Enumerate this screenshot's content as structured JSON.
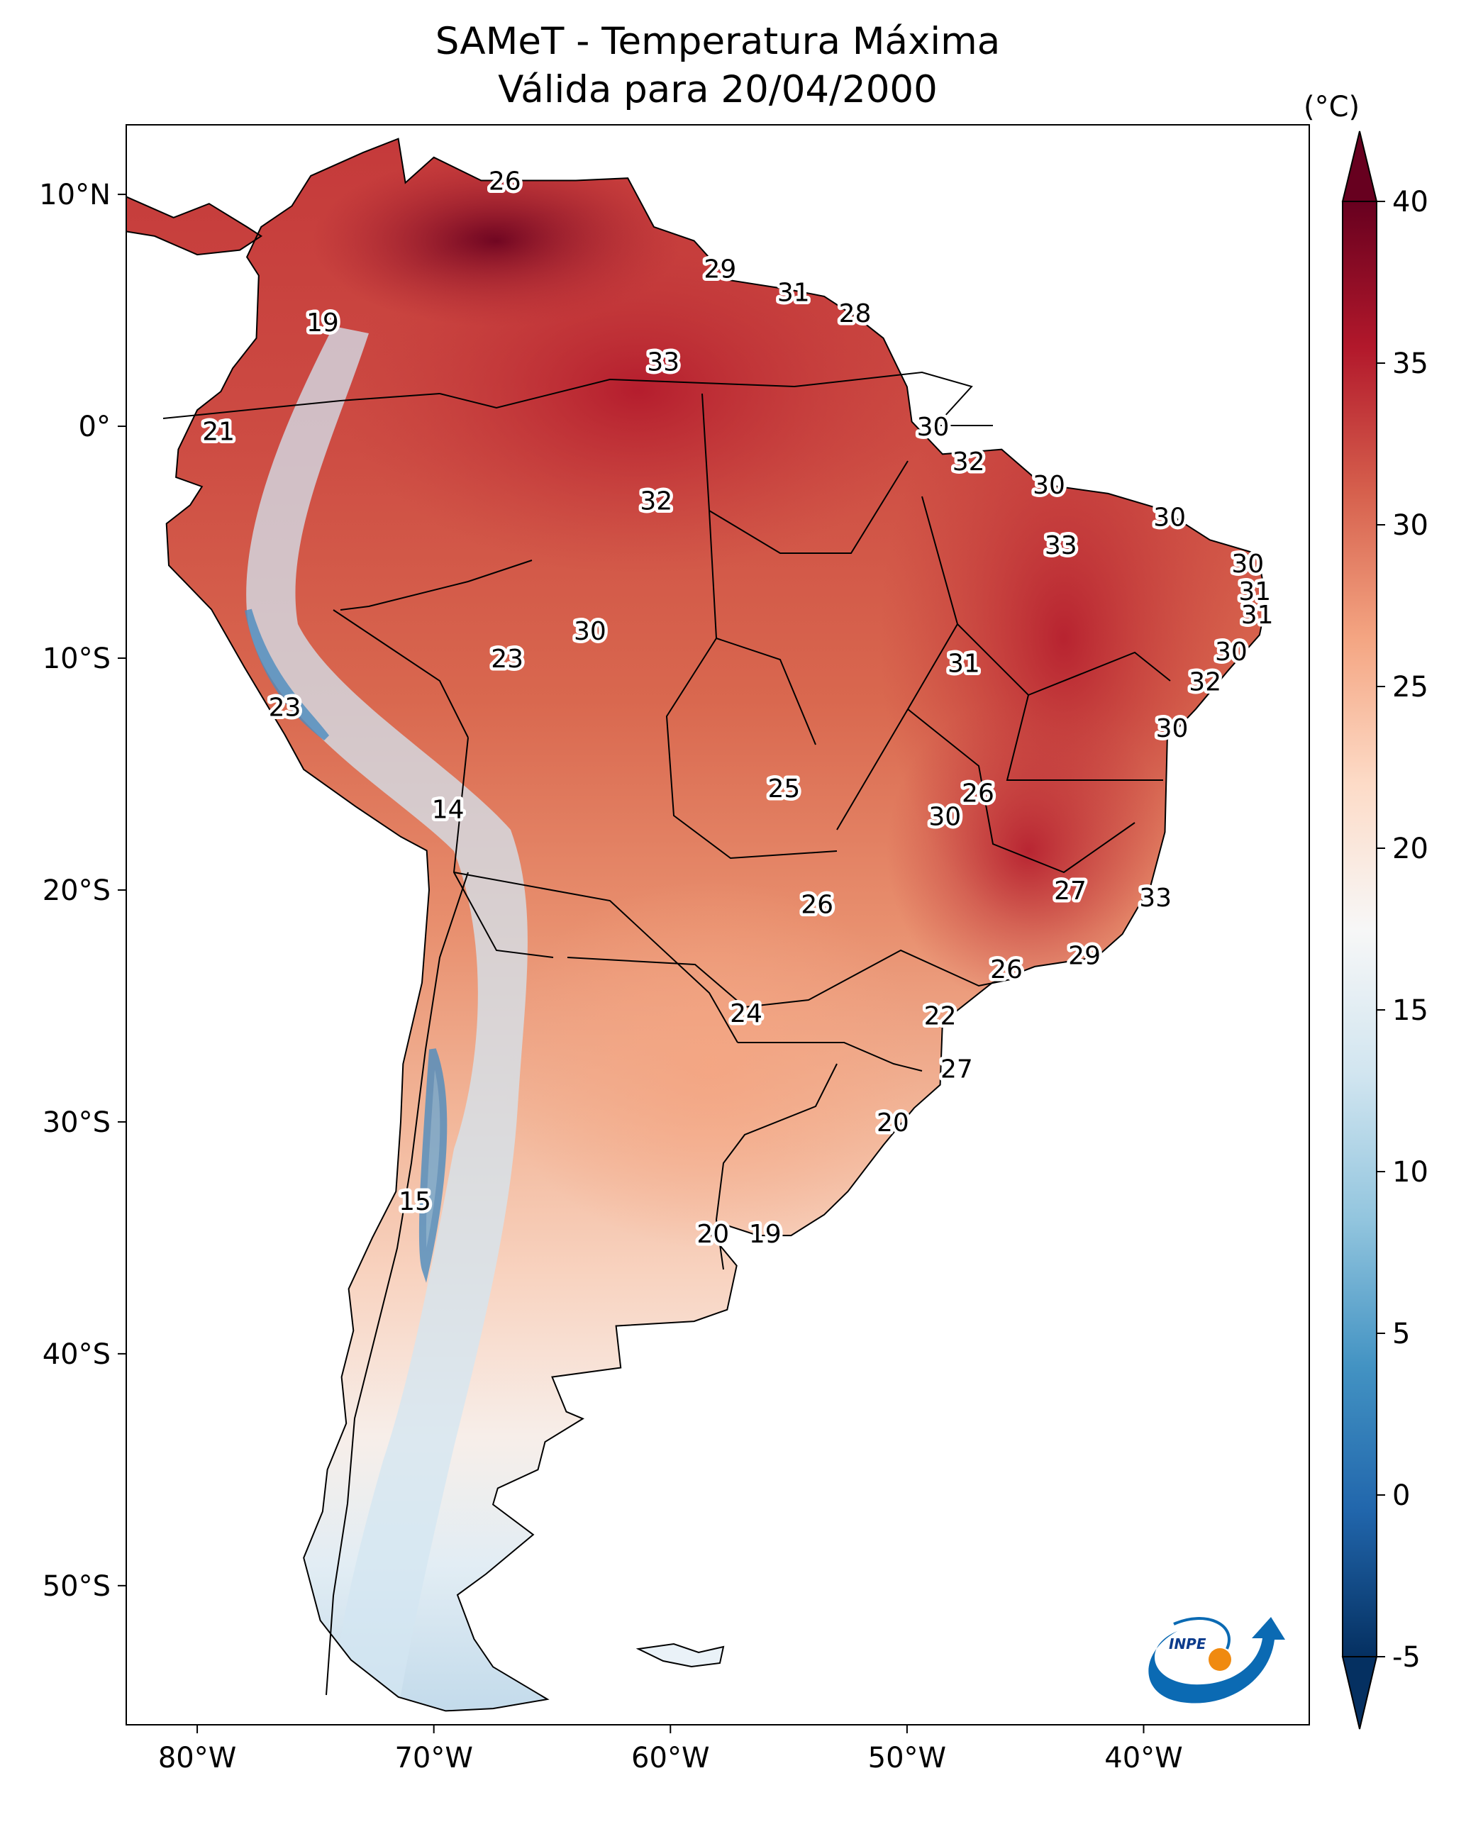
{
  "title": "SAMeT - Temperatura Máxima",
  "subtitle": "Válida para 20/04/2000",
  "units": "(°C)",
  "longitude_labels": [
    "80°W",
    "70°W",
    "60°W",
    "50°W",
    "40°W"
  ],
  "latitude_labels": [
    "10°N",
    "0°",
    "10°S",
    "20°S",
    "30°S",
    "40°S",
    "50°S"
  ],
  "colorbar": {
    "ticks": [
      "40",
      "35",
      "30",
      "25",
      "20",
      "15",
      "10",
      "5",
      "0",
      "-5"
    ],
    "range": [
      -5,
      40
    ],
    "extend": "both",
    "colormap": [
      "#053061",
      "#2166ac",
      "#4393c3",
      "#92c5de",
      "#d1e5f0",
      "#f7f7f7",
      "#fddbc7",
      "#f4a582",
      "#d6604d",
      "#b2182b",
      "#67001f"
    ]
  },
  "logo_text": "INPE",
  "map_values": [
    {
      "value": "26",
      "lon": -67,
      "lat": 10.6
    },
    {
      "value": "29",
      "lon": -57.9,
      "lat": 6.8
    },
    {
      "value": "31",
      "lon": -54.8,
      "lat": 5.8
    },
    {
      "value": "28",
      "lon": -52.2,
      "lat": 4.9
    },
    {
      "value": "19",
      "lon": -74.7,
      "lat": 4.5
    },
    {
      "value": "33",
      "lon": -60.3,
      "lat": 2.8
    },
    {
      "value": "21",
      "lon": -79.1,
      "lat": -0.2
    },
    {
      "value": "30",
      "lon": -48.9,
      "lat": 0.0
    },
    {
      "value": "32",
      "lon": -47.4,
      "lat": -1.5
    },
    {
      "value": "30",
      "lon": -44.0,
      "lat": -2.5
    },
    {
      "value": "32",
      "lon": -60.6,
      "lat": -3.2
    },
    {
      "value": "30",
      "lon": -38.9,
      "lat": -3.9
    },
    {
      "value": "33",
      "lon": -43.5,
      "lat": -5.1
    },
    {
      "value": "30",
      "lon": -35.6,
      "lat": -5.9
    },
    {
      "value": "31",
      "lon": -35.3,
      "lat": -7.1
    },
    {
      "value": "31",
      "lon": -35.2,
      "lat": -8.1
    },
    {
      "value": "30",
      "lon": -63.4,
      "lat": -8.8
    },
    {
      "value": "23",
      "lon": -66.9,
      "lat": -10.0
    },
    {
      "value": "31",
      "lon": -47.6,
      "lat": -10.2
    },
    {
      "value": "30",
      "lon": -36.3,
      "lat": -9.7
    },
    {
      "value": "32",
      "lon": -37.4,
      "lat": -11.0
    },
    {
      "value": "23",
      "lon": -76.3,
      "lat": -12.1
    },
    {
      "value": "30",
      "lon": -38.8,
      "lat": -13.0
    },
    {
      "value": "25",
      "lon": -55.2,
      "lat": -15.6
    },
    {
      "value": "26",
      "lon": -47.0,
      "lat": -15.8
    },
    {
      "value": "14",
      "lon": -69.4,
      "lat": -16.5
    },
    {
      "value": "30",
      "lon": -48.4,
      "lat": -16.8
    },
    {
      "value": "27",
      "lon": -43.1,
      "lat": -20.0
    },
    {
      "value": "33",
      "lon": -39.5,
      "lat": -20.3
    },
    {
      "value": "26",
      "lon": -53.8,
      "lat": -20.6
    },
    {
      "value": "29",
      "lon": -42.5,
      "lat": -22.8
    },
    {
      "value": "26",
      "lon": -45.8,
      "lat": -23.4
    },
    {
      "value": "24",
      "lon": -56.8,
      "lat": -25.3
    },
    {
      "value": "22",
      "lon": -48.6,
      "lat": -25.4
    },
    {
      "value": "27",
      "lon": -47.9,
      "lat": -27.7
    },
    {
      "value": "20",
      "lon": -50.6,
      "lat": -30.0
    },
    {
      "value": "15",
      "lon": -70.8,
      "lat": -33.4
    },
    {
      "value": "20",
      "lon": -58.2,
      "lat": -34.8
    },
    {
      "value": "19",
      "lon": -56.0,
      "lat": -34.8
    }
  ]
}
